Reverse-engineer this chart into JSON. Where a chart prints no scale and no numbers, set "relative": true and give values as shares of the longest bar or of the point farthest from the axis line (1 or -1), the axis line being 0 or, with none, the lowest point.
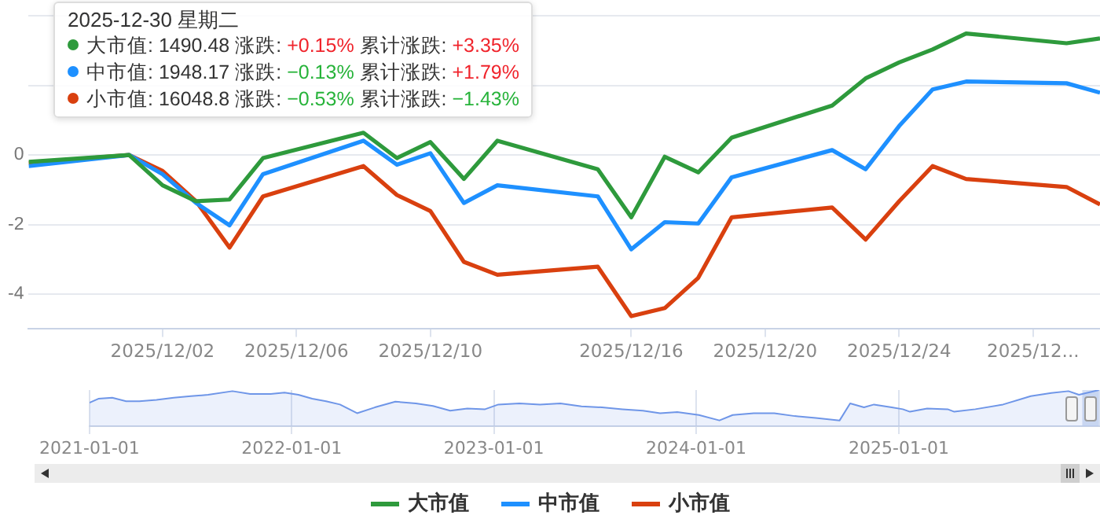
{
  "chart_data": [
    {
      "type": "line",
      "x": [
        "2025-11-28",
        "2025-12-01",
        "2025-12-02",
        "2025-12-03",
        "2025-12-04",
        "2025-12-05",
        "2025-12-08",
        "2025-12-09",
        "2025-12-10",
        "2025-12-11",
        "2025-12-12",
        "2025-12-15",
        "2025-12-16",
        "2025-12-17",
        "2025-12-18",
        "2025-12-19",
        "2025-12-22",
        "2025-12-23",
        "2025-12-24",
        "2025-12-25",
        "2025-12-26",
        "2025-12-29",
        "2025-12-30"
      ],
      "series": [
        {
          "name": "大市值",
          "color": "#2e9a3c",
          "values": [
            -0.2,
            0,
            -0.87,
            -1.33,
            -1.28,
            -0.09,
            0.64,
            -0.09,
            0.37,
            -0.69,
            0.41,
            -0.41,
            -1.79,
            -0.05,
            -0.5,
            0.5,
            1.42,
            2.2,
            2.66,
            3.03,
            3.49,
            3.21,
            3.35
          ]
        },
        {
          "name": "中市值",
          "color": "#1e90ff",
          "values": [
            -0.32,
            0,
            -0.55,
            -1.38,
            -2.02,
            -0.55,
            0.41,
            -0.28,
            0.05,
            -1.38,
            -0.87,
            -1.19,
            -2.71,
            -1.93,
            -1.97,
            -0.64,
            0.14,
            -0.41,
            0.83,
            1.88,
            2.11,
            2.06,
            1.79
          ]
        },
        {
          "name": "小市值",
          "color": "#d9400f",
          "values": [
            -0.23,
            0,
            -0.46,
            -1.33,
            -2.66,
            -1.19,
            -0.32,
            -1.15,
            -1.61,
            -3.07,
            -3.44,
            -3.21,
            -4.63,
            -4.4,
            -3.53,
            -1.79,
            -1.51,
            -2.43,
            -1.33,
            -0.32,
            -0.69,
            -0.92,
            -1.42
          ]
        }
      ],
      "xlim": [
        "2025-11-28",
        "2025-12-30"
      ],
      "xticks": [
        {
          "value": "2025-12-02",
          "label": "2025/12/02"
        },
        {
          "value": "2025-12-06",
          "label": "2025/12/06"
        },
        {
          "value": "2025-12-10",
          "label": "2025/12/10"
        },
        {
          "value": "2025-12-16",
          "label": "2025/12/16"
        },
        {
          "value": "2025-12-20",
          "label": "2025/12/20"
        },
        {
          "value": "2025-12-24",
          "label": "2025/12/24"
        },
        {
          "value": "2025-12-28",
          "label": "2025/12..."
        }
      ],
      "ylim": [
        -5,
        4
      ],
      "yticks": [
        -4,
        -2,
        0,
        {
          "value": 2,
          "label": null
        },
        {
          "value": 4,
          "label": null
        }
      ],
      "grid": "y",
      "legend": "bottom",
      "marker": "none",
      "line_style": "solid",
      "annotations": [
        "2025-12-30 星期二",
        "大市值: 1490.48 涨跌: +0.15% 累计涨跌: +3.35%",
        "中市值: 1948.17 涨跌: −0.13% 累计涨跌: +1.79%",
        "小市值: 16048.8 涨跌: −0.53% 累计涨跌: −1.43%"
      ]
    },
    {
      "type": "area",
      "relative": true,
      "x": [
        "2021-01-01",
        "2021-01-17",
        "2021-02-11",
        "2021-03-08",
        "2021-04-01",
        "2021-05-02",
        "2021-06-02",
        "2021-07-03",
        "2021-08-03",
        "2021-09-16",
        "2021-10-18",
        "2021-11-24",
        "2021-12-19",
        "2022-01-13",
        "2022-02-07",
        "2022-03-04",
        "2022-03-29",
        "2022-04-29",
        "2022-05-31",
        "2022-07-07",
        "2022-08-13",
        "2022-09-13",
        "2022-10-14",
        "2022-11-14",
        "2022-12-16",
        "2023-01-09",
        "2023-02-16",
        "2023-03-25",
        "2023-05-01",
        "2023-06-08",
        "2023-07-15",
        "2023-08-21",
        "2023-09-27",
        "2023-10-28",
        "2023-11-28",
        "2024-01-06",
        "2024-02-12",
        "2024-03-07",
        "2024-04-14",
        "2024-05-21",
        "2024-06-27",
        "2024-08-04",
        "2024-09-16",
        "2024-10-05",
        "2024-10-30",
        "2024-11-17",
        "2024-12-19",
        "2025-01-08",
        "2025-01-21",
        "2025-02-21",
        "2025-03-30",
        "2025-04-11",
        "2025-05-19",
        "2025-07-08",
        "2025-08-27",
        "2025-10-03",
        "2025-11-03",
        "2025-11-22",
        "2025-12-28"
      ],
      "series": [
        {
          "color": "#6f96e8",
          "values": [
            0.65,
            0.76,
            0.79,
            0.69,
            0.69,
            0.73,
            0.79,
            0.83,
            0.87,
            0.97,
            0.89,
            0.89,
            0.93,
            0.87,
            0.76,
            0.69,
            0.6,
            0.36,
            0.52,
            0.68,
            0.63,
            0.56,
            0.43,
            0.49,
            0.47,
            0.6,
            0.63,
            0.6,
            0.63,
            0.55,
            0.52,
            0.47,
            0.43,
            0.36,
            0.39,
            0.31,
            0.16,
            0.31,
            0.36,
            0.36,
            0.28,
            0.23,
            0.16,
            0.63,
            0.52,
            0.6,
            0.52,
            0.47,
            0.4,
            0.49,
            0.47,
            0.4,
            0.47,
            0.6,
            0.83,
            0.92,
            0.97,
            0.87,
            1
          ]
        }
      ],
      "xlim": [
        "2021-01-01",
        "2025-12-30"
      ],
      "xticks": [
        "2021-01-01",
        "2022-01-01",
        "2023-01-01",
        "2024-01-01",
        "2025-01-01"
      ],
      "bands": [
        {
          "axis": "x",
          "from": "2025-11-28",
          "to": "2025-12-30",
          "color": "#c5d3ee"
        }
      ],
      "grid": "x",
      "legend": false,
      "marker": "none"
    }
  ]
}
